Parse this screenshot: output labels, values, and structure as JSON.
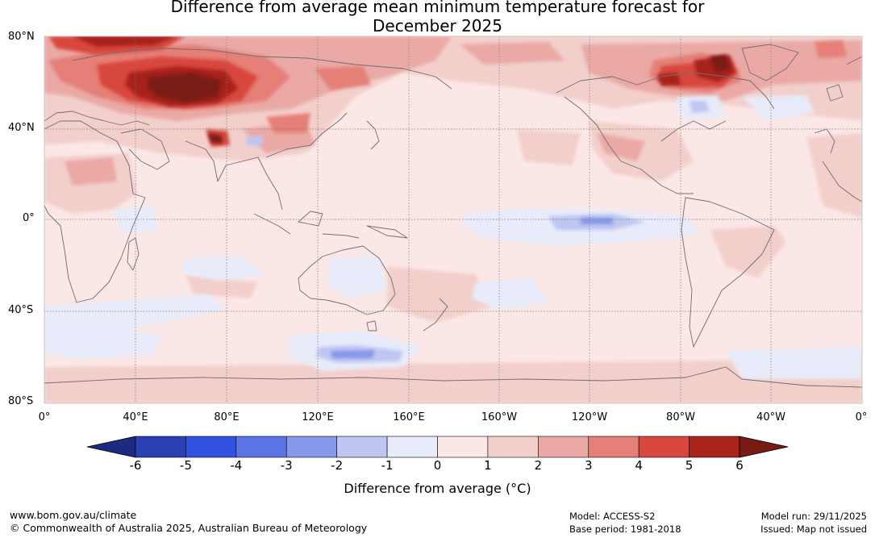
{
  "title_line1": "Difference from average mean minimum temperature forecast for",
  "title_line2": "December 2025",
  "lat_labels": [
    "80°N",
    "40°N",
    "0°",
    "40°S",
    "80°S"
  ],
  "lon_labels": [
    "0°",
    "40°E",
    "80°E",
    "120°E",
    "160°E",
    "160°W",
    "120°W",
    "80°W",
    "40°W",
    "0°"
  ],
  "colorbar": {
    "ticks": [
      "-6",
      "-5",
      "-4",
      "-3",
      "-2",
      "-1",
      "0",
      "1",
      "2",
      "3",
      "4",
      "5",
      "6"
    ],
    "colors": [
      "#1c2b7f",
      "#2a40b3",
      "#3152e0",
      "#5b74e4",
      "#8797ea",
      "#bfc6f2",
      "#e8ebfa",
      "#fbe8e6",
      "#f3cfcc",
      "#eaa9a5",
      "#e57f77",
      "#d8473d",
      "#a8241d",
      "#7a1a14"
    ],
    "label": "Difference from average (°C)"
  },
  "footer": {
    "website": "www.bom.gov.au/climate",
    "copyright": "© Commonwealth of Australia 2025, Australian Bureau of Meteorology",
    "model": "Model: ACCESS-S2",
    "base_period": "Base period: 1981-2018",
    "model_run": "Model run: 29/11/2025",
    "issued": "Issued: Map not issued"
  }
}
